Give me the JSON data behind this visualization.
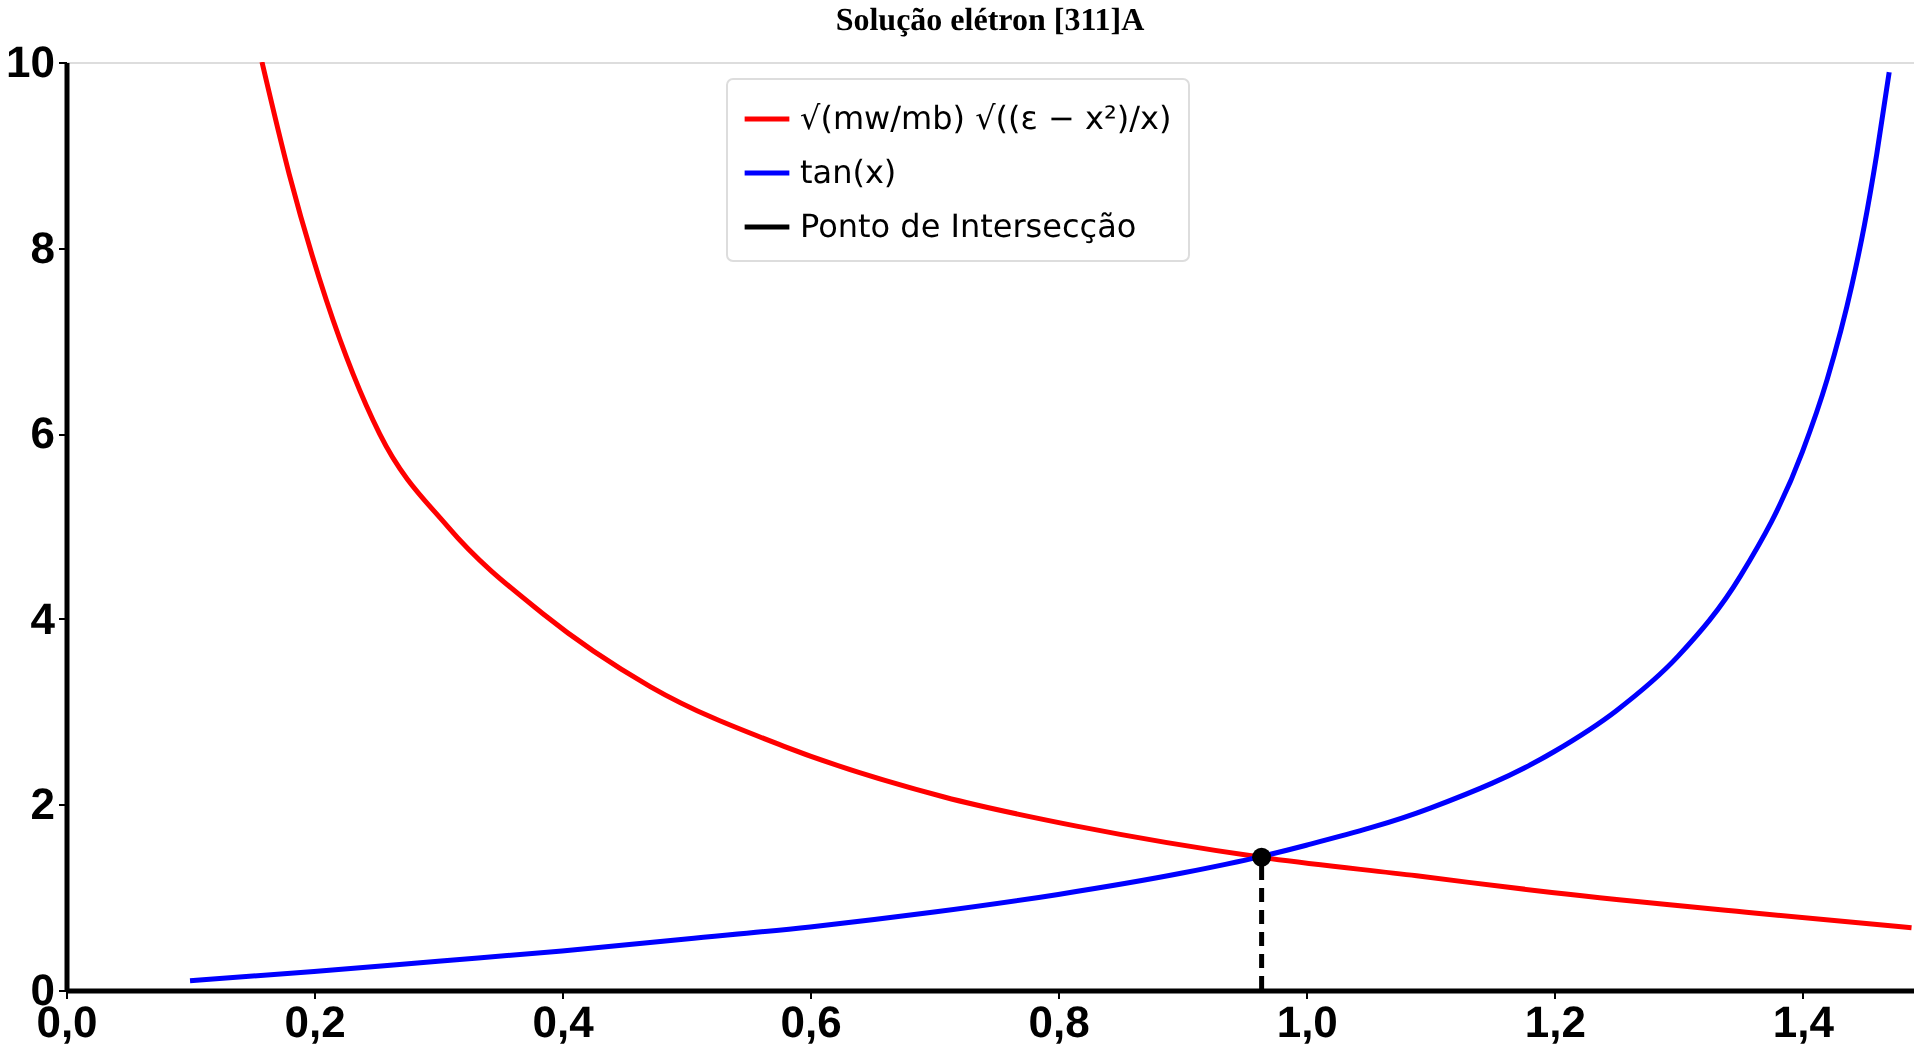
{
  "chart_data": {
    "type": "line",
    "title": "Solução elétron [311]A",
    "xlim": [
      0,
      1.49
    ],
    "ylim": [
      0,
      10
    ],
    "xticks": [
      {
        "value": 0,
        "label": "0,0"
      },
      {
        "value": 0.2,
        "label": "0,2"
      },
      {
        "value": 0.4,
        "label": "0,4"
      },
      {
        "value": 0.6,
        "label": "0,6"
      },
      {
        "value": 0.8,
        "label": "0,8"
      },
      {
        "value": 1.0,
        "label": "1,0"
      },
      {
        "value": 1.2,
        "label": "1,2"
      },
      {
        "value": 1.4,
        "label": "1,4"
      }
    ],
    "yticks": [
      0,
      2,
      4,
      6,
      8,
      10
    ],
    "grid": false,
    "legend": "top",
    "line_style": "solid",
    "series": [
      {
        "name": "√(mw/mb) √((ε − x²)/x)",
        "color": "#ff0000",
        "x": [
          0.158,
          0.18,
          0.21,
          0.253,
          0.308,
          0.384,
          0.471,
          0.58,
          0.708,
          0.817,
          0.964,
          1.089,
          1.198,
          1.361,
          1.488
        ],
        "values": [
          10,
          8.79,
          7.43,
          5.99,
          4.99,
          4.06,
          3.27,
          2.62,
          2.08,
          1.76,
          1.43,
          1.23,
          1.05,
          0.83,
          0.67
        ]
      },
      {
        "name": "tan(x)",
        "color": "#0000ff",
        "x": [
          0.1,
          0.2,
          0.3,
          0.4,
          0.5,
          0.6,
          0.7,
          0.8,
          0.9,
          0.964,
          1.0,
          1.1,
          1.2,
          1.25,
          1.3,
          1.35,
          1.4,
          1.42,
          1.44,
          1.45,
          1.46,
          1.47
        ],
        "values": [
          0.1,
          0.2,
          0.31,
          0.42,
          0.55,
          0.68,
          0.84,
          1.03,
          1.26,
          1.44,
          1.56,
          1.96,
          2.57,
          3.01,
          3.6,
          4.46,
          5.8,
          6.58,
          7.6,
          8.24,
          9.01,
          9.89
        ]
      },
      {
        "name": "Ponto de Intersecção",
        "color": "#000000",
        "type": "scatter",
        "marker": "circle",
        "x": [
          0.964
        ],
        "values": [
          1.43
        ]
      },
      {
        "color": "#000000",
        "type": "line",
        "line_style": "dashed",
        "x": [
          0.964,
          0.964
        ],
        "values": [
          0,
          1.43
        ]
      }
    ]
  }
}
